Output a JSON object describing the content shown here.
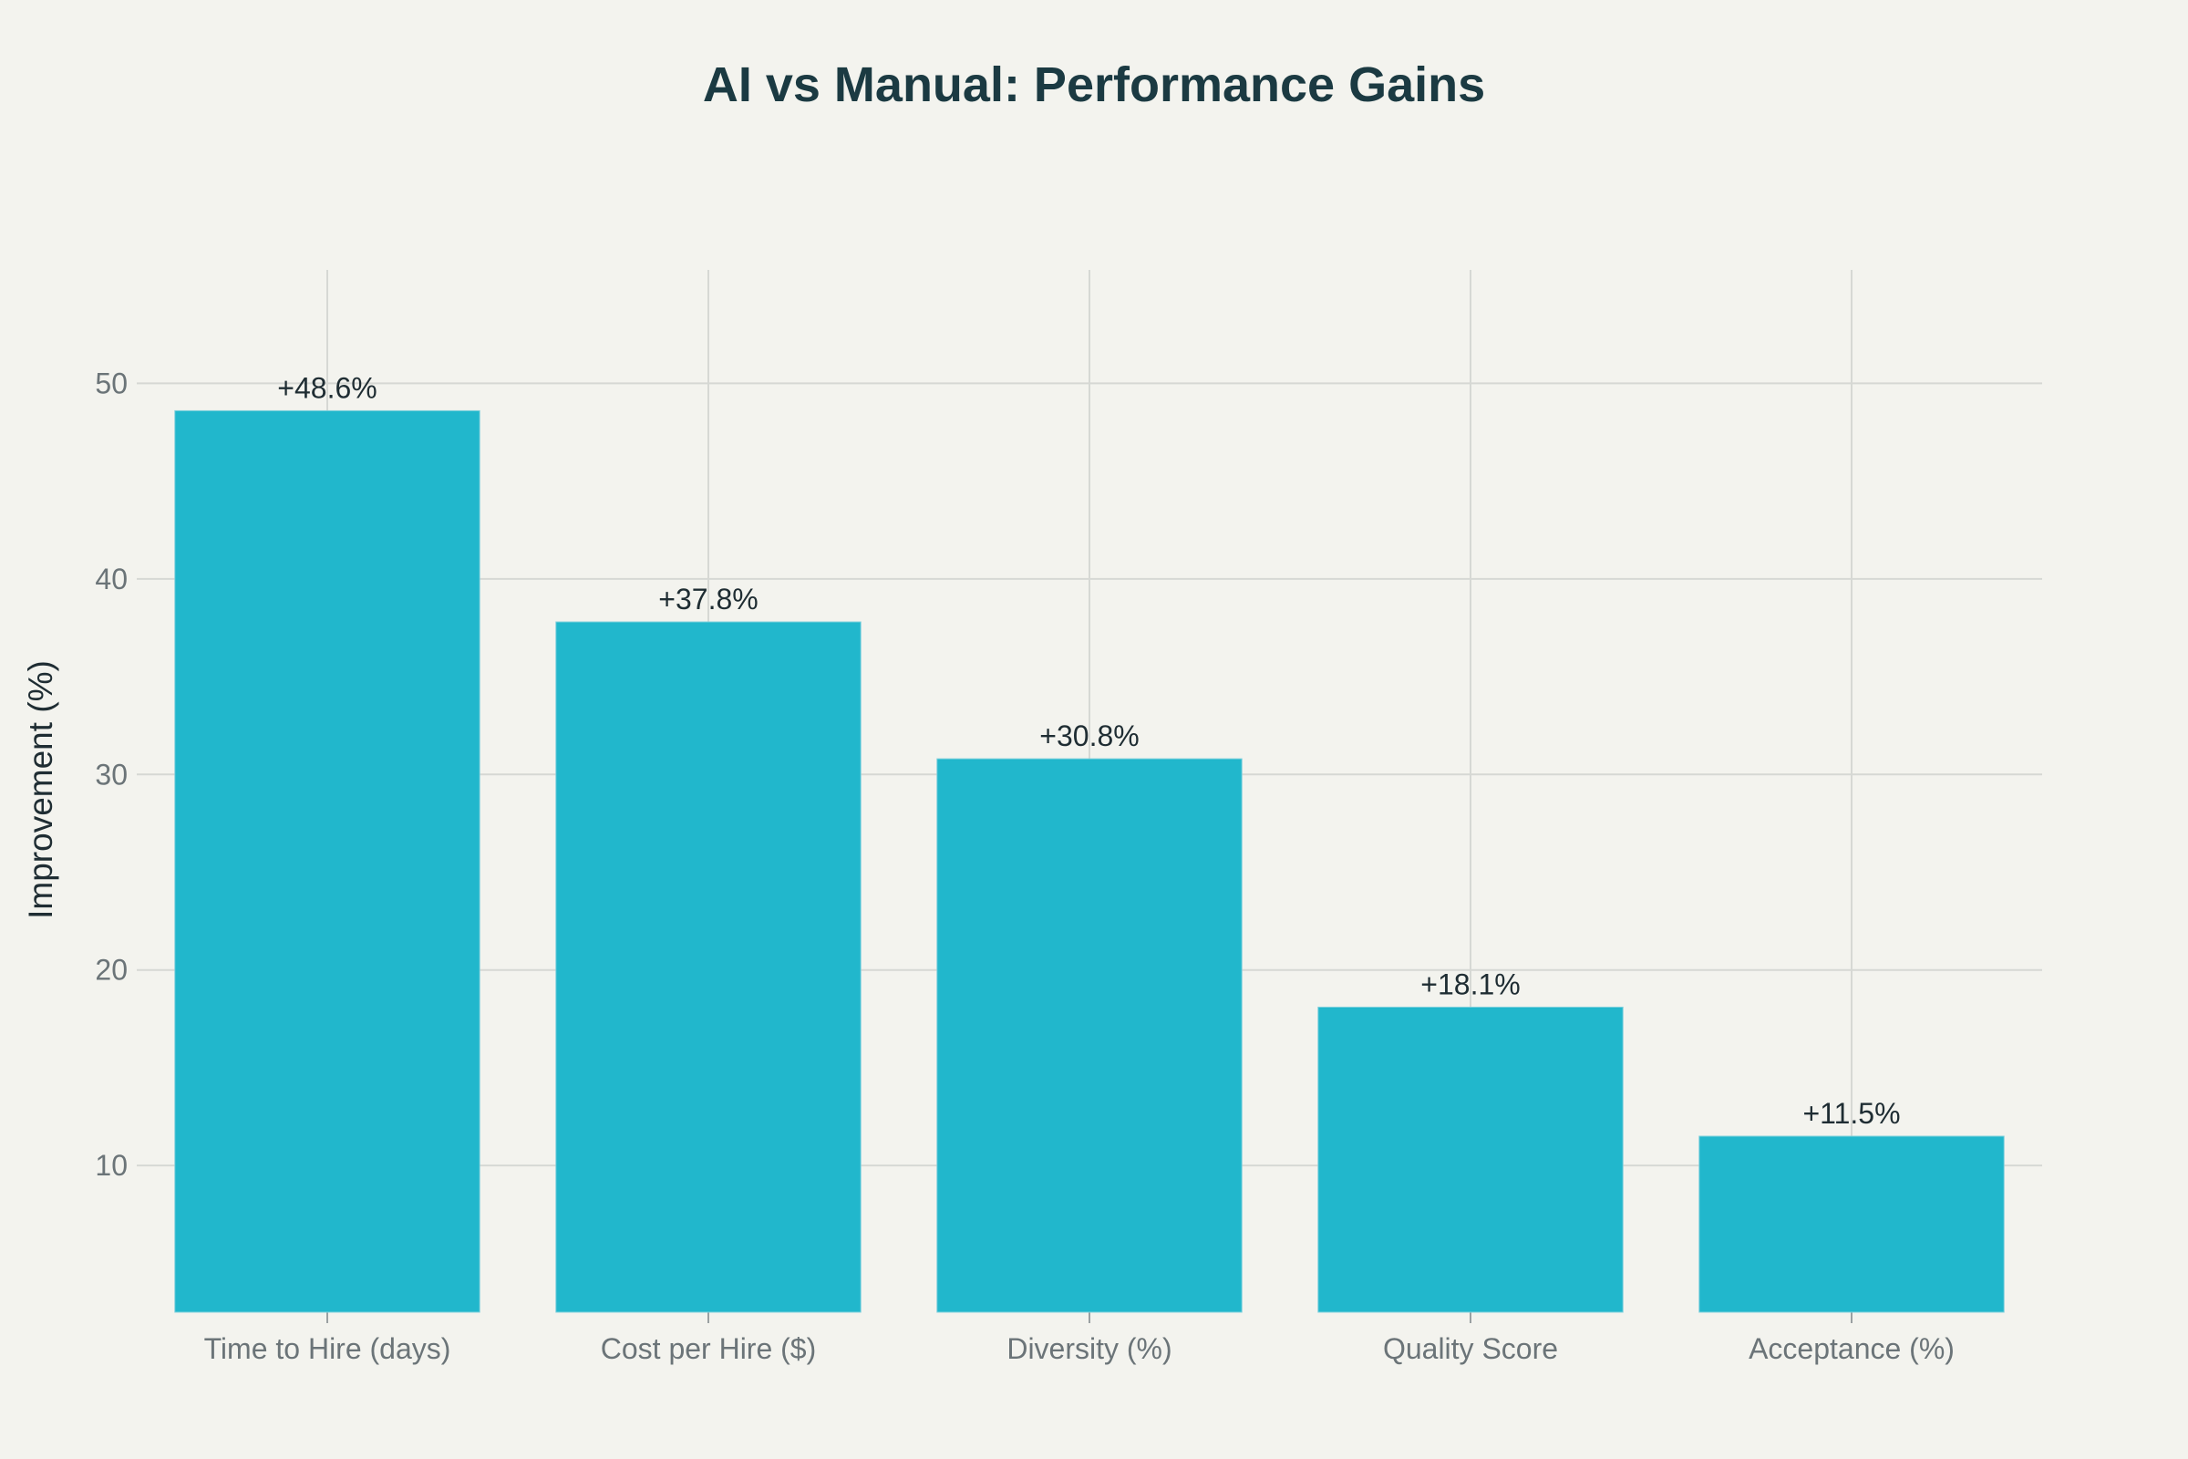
{
  "chart_data": {
    "type": "bar",
    "title": "AI vs Manual: Performance Gains",
    "xlabel": "",
    "ylabel": "Improvement (%)",
    "categories": [
      "Time to Hire (days)",
      "Cost per Hire ($)",
      "Diversity (%)",
      "Quality Score",
      "Acceptance (%)"
    ],
    "values": [
      48.6,
      37.8,
      30.8,
      18.1,
      11.5
    ],
    "value_labels": [
      "+48.6%",
      "+37.8%",
      "+30.8%",
      "+18.1%",
      "+11.5%"
    ],
    "y_ticks": [
      10,
      20,
      30,
      40,
      50
    ],
    "ylim": [
      2.5,
      55.8
    ],
    "grid": true,
    "bar_color": "#21b7cc",
    "grid_color": "#d6d8d4",
    "background_color": "#f3f3ee"
  }
}
